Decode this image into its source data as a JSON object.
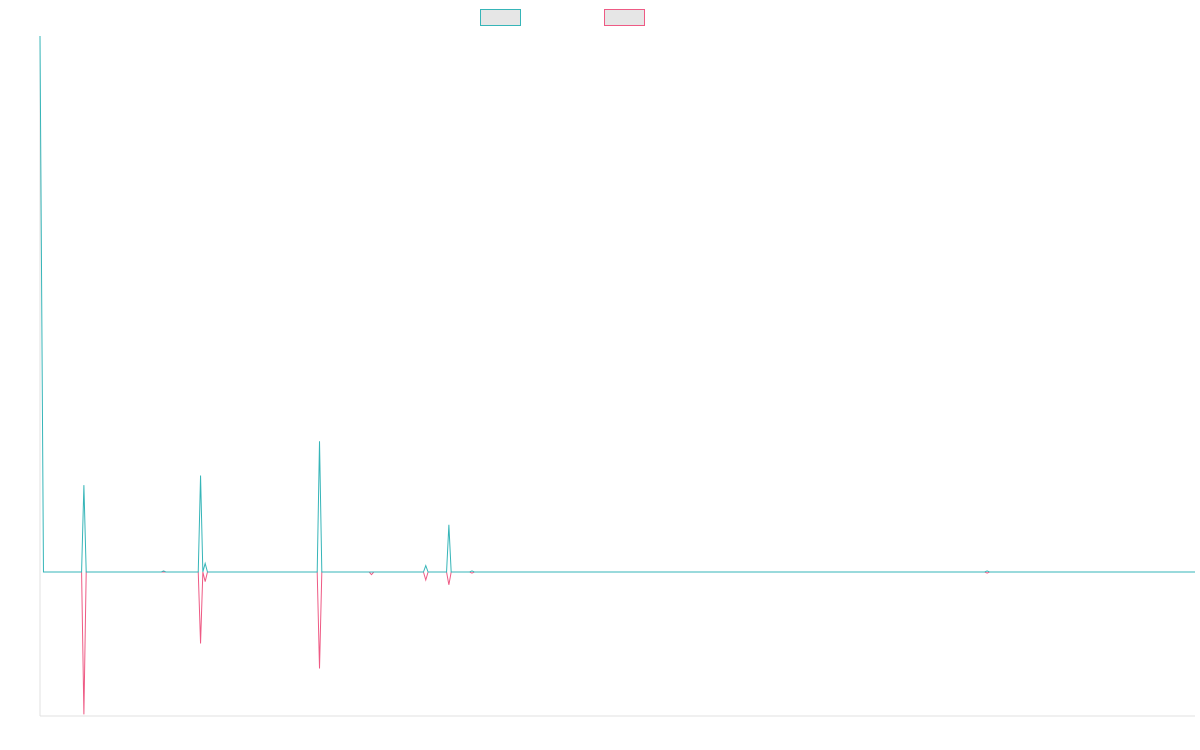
{
  "chart_data": {
    "type": "line",
    "title": "",
    "xlabel": "",
    "ylabel": "",
    "grid": false,
    "legend_position": "top-center",
    "ylim": [
      -27,
      100
    ],
    "series": [
      {
        "key": "series_a",
        "color": "#36b5b8",
        "points": [
          [
            0,
            100
          ],
          [
            3,
            0
          ],
          [
            36,
            0
          ],
          [
            38,
            16.2
          ],
          [
            40,
            0
          ],
          [
            105,
            0
          ],
          [
            107,
            0.2
          ],
          [
            109,
            0
          ],
          [
            137,
            0
          ],
          [
            139,
            18
          ],
          [
            141,
            0
          ],
          [
            143,
            1.6
          ],
          [
            145,
            0
          ],
          [
            240,
            0
          ],
          [
            242,
            24.4
          ],
          [
            244,
            0
          ],
          [
            285,
            0
          ],
          [
            287,
            0
          ],
          [
            289,
            0
          ],
          [
            332,
            0
          ],
          [
            334,
            1.2
          ],
          [
            336,
            0
          ],
          [
            352,
            0
          ],
          [
            354,
            8.8
          ],
          [
            356,
            0
          ],
          [
            372,
            0
          ],
          [
            374,
            0.2
          ],
          [
            376,
            0
          ],
          [
            818,
            0
          ],
          [
            820,
            0.2
          ],
          [
            822,
            0
          ],
          [
            1000,
            0
          ]
        ]
      },
      {
        "key": "series_b",
        "color": "#ee5a84",
        "points": [
          [
            36,
            0
          ],
          [
            38,
            -26.7
          ],
          [
            40,
            0
          ],
          [
            105,
            0
          ],
          [
            107,
            0
          ],
          [
            109,
            0
          ],
          [
            137,
            0
          ],
          [
            139,
            -13.4
          ],
          [
            141,
            0
          ],
          [
            143,
            -1.8
          ],
          [
            145,
            0
          ],
          [
            240,
            0
          ],
          [
            242,
            -18.1
          ],
          [
            244,
            0
          ],
          [
            285,
            0
          ],
          [
            287,
            -0.5
          ],
          [
            289,
            0
          ],
          [
            332,
            0
          ],
          [
            334,
            -1.5
          ],
          [
            336,
            0
          ],
          [
            352,
            0
          ],
          [
            354,
            -2.4
          ],
          [
            356,
            0
          ],
          [
            372,
            0
          ],
          [
            374,
            -0.2
          ],
          [
            376,
            0
          ],
          [
            818,
            0
          ],
          [
            820,
            -0.2
          ],
          [
            822,
            0
          ]
        ]
      }
    ]
  }
}
